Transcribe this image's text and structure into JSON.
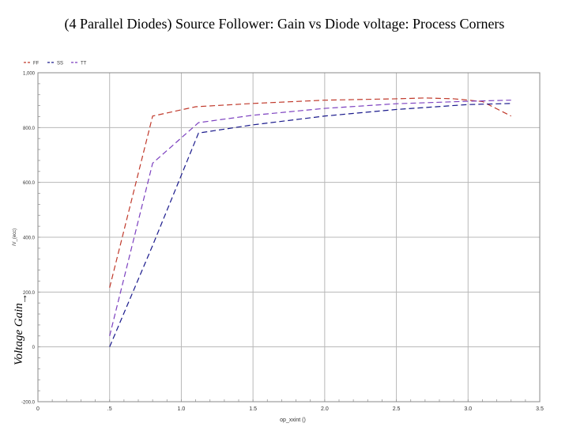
{
  "title": "(4 Parallel Diodes) Source Follower: Gain vs Diode voltage: Process Corners",
  "chart_data": {
    "type": "line",
    "title": "(4 Parallel Diodes) Source Follower: Gain vs Diode voltage: Process Corners",
    "ylabel": "Voltage Gain",
    "ylabel_arrow": "→",
    "xlabel": "op_xxint ()",
    "ylabel_small": "/V_(ecc)",
    "xlim": [
      0,
      3.5
    ],
    "ylim": [
      -200,
      1000
    ],
    "x_ticks": [
      0,
      0.5,
      1.0,
      1.5,
      2.0,
      2.5,
      3.0,
      3.5
    ],
    "x_tick_labels": [
      "0",
      ".5",
      "1.0",
      "1.5",
      "2.0",
      "2.5",
      "3.0",
      "3.5"
    ],
    "y_ticks": [
      -200,
      0,
      200,
      400,
      600,
      800,
      1000
    ],
    "y_tick_labels": [
      "-200.0",
      "0",
      "200.0",
      "400.0",
      "600.0",
      "800.0",
      "1,000"
    ],
    "series": [
      {
        "name": "FF",
        "color": "#c0392b",
        "x": [
          0.5,
          0.8,
          1.1,
          1.5,
          2.0,
          2.5,
          2.7,
          2.9,
          3.1,
          3.3
        ],
        "y": [
          216,
          842,
          876,
          888,
          900,
          905,
          908,
          905,
          895,
          842
        ]
      },
      {
        "name": "SS",
        "color": "#1a1a8c",
        "x": [
          0.5,
          0.8,
          1.12,
          1.5,
          2.0,
          2.5,
          3.0,
          3.3
        ],
        "y": [
          0,
          370,
          780,
          810,
          842,
          866,
          884,
          888
        ]
      },
      {
        "name": "TT",
        "color": "#7b3fbf",
        "x": [
          0.5,
          0.8,
          1.12,
          1.5,
          2.0,
          2.5,
          3.0,
          3.3
        ],
        "y": [
          40,
          670,
          818,
          845,
          870,
          887,
          896,
          900
        ]
      }
    ],
    "grid": true,
    "legend": "top-left"
  }
}
